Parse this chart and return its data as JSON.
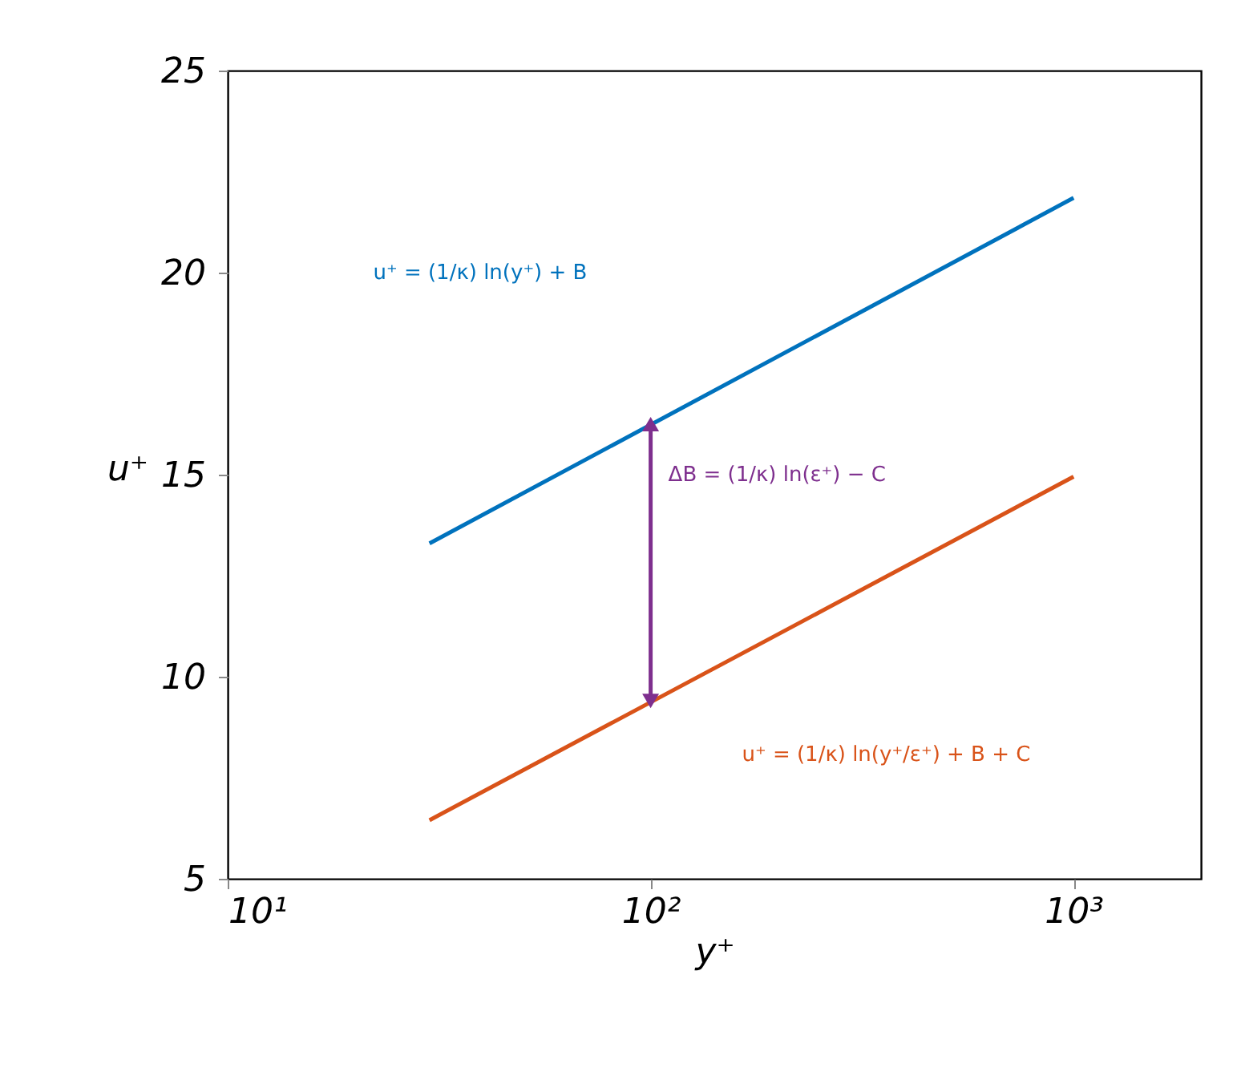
{
  "chart_data": {
    "type": "line",
    "xlabel": "y⁺",
    "ylabel": "u⁺",
    "log": "x",
    "xlim": [
      10,
      2000
    ],
    "ylim": [
      5,
      25
    ],
    "xticks": [
      {
        "value": 10,
        "label": "10¹"
      },
      {
        "value": 100,
        "label": "10²"
      },
      {
        "value": 1000,
        "label": "10³"
      }
    ],
    "yticks": [
      5,
      10,
      15,
      20,
      25
    ],
    "grid": false,
    "legend": false,
    "marker": "none",
    "line_style": "solid",
    "series": [
      {
        "name": "u⁺ = (1/κ) ln(y⁺) + B",
        "color": "#0072bd",
        "x": [
          30,
          1000
        ],
        "values": [
          13.3,
          21.85
        ]
      },
      {
        "name": "u⁺ = (1/κ) ln(y⁺/ε⁺) + B + C",
        "color": "#d95319",
        "x": [
          30,
          1000
        ],
        "values": [
          6.45,
          14.95
        ]
      },
      {
        "name": "ΔB = (1/κ) ln(ε⁺) − C",
        "color": "#7e2f8e",
        "marker": "triangle",
        "x": [
          100,
          100
        ],
        "values": [
          16.25,
          9.4
        ]
      }
    ]
  }
}
